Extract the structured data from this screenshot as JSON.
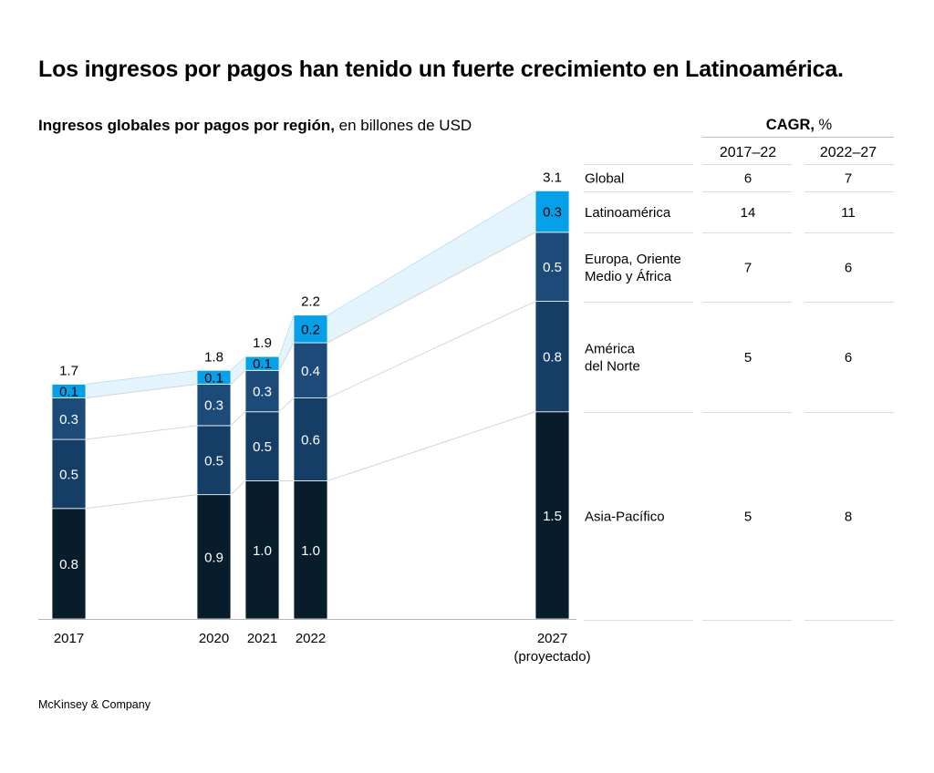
{
  "headline": "Los ingresos por pagos han tenido un fuerte crecimiento en Latinoamérica.",
  "subtitle_bold": "Ingresos globales por pagos por región,",
  "subtitle_unit": " en billones de USD",
  "footer": "McKinsey & Company",
  "colors": {
    "asia_pacifico": "#081d2c",
    "america_norte": "#143e66",
    "europa": "#1c4b7a",
    "latam": "#04a1ea",
    "latam_band": "#e3f4fc",
    "connector": "#d6d6d6",
    "rule": "#dcdcdc"
  },
  "chart_data": {
    "type": "bar",
    "stacked": true,
    "unit": "billones de USD",
    "categories": [
      "2017",
      "2020",
      "2021",
      "2022",
      "2027"
    ],
    "category_sublabels": [
      "",
      "",
      "",
      "",
      "(proyectado)"
    ],
    "totals": [
      "1.7",
      "1.8",
      "1.9",
      "2.2",
      "3.1"
    ],
    "series": [
      {
        "name": "Asia-Pacífico",
        "values": [
          0.8,
          0.9,
          1.0,
          1.0,
          1.5
        ],
        "labels": [
          "0.8",
          "0.9",
          "1.0",
          "1.0",
          "1.5"
        ]
      },
      {
        "name": "América del Norte",
        "values": [
          0.5,
          0.5,
          0.5,
          0.6,
          0.8
        ],
        "labels": [
          "0.5",
          "0.5",
          "0.5",
          "0.6",
          "0.8"
        ]
      },
      {
        "name": "Europa, Oriente Medio y África",
        "values": [
          0.3,
          0.3,
          0.3,
          0.4,
          0.5
        ],
        "labels": [
          "0.3",
          "0.3",
          "0.3",
          "0.4",
          "0.5"
        ]
      },
      {
        "name": "Latinoamérica",
        "values": [
          0.1,
          0.1,
          0.1,
          0.2,
          0.3
        ],
        "labels": [
          "0.1",
          "0.1",
          "0.1",
          "0.2",
          "0.3"
        ]
      }
    ]
  },
  "cagr_table": {
    "title_bold": "CAGR,",
    "title_unit": " %",
    "columns": [
      "2017–22",
      "2022–27"
    ],
    "rows": [
      {
        "region": [
          "Global"
        ],
        "values": [
          "6",
          "7"
        ]
      },
      {
        "region": [
          "Latinoamérica"
        ],
        "values": [
          "14",
          "11"
        ]
      },
      {
        "region": [
          "Europa, Oriente",
          "Medio y África"
        ],
        "values": [
          "7",
          "6"
        ]
      },
      {
        "region": [
          "América",
          "del Norte"
        ],
        "values": [
          "5",
          "6"
        ]
      },
      {
        "region": [
          "Asia-Pacífico"
        ],
        "values": [
          "5",
          "8"
        ]
      }
    ]
  }
}
